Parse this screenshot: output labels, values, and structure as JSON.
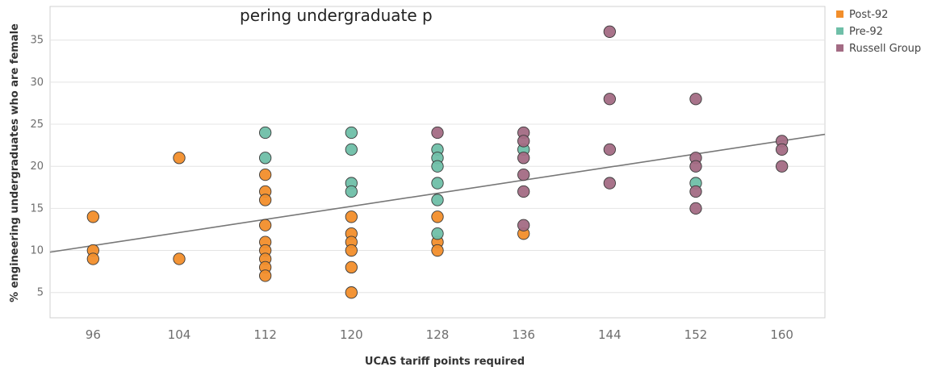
{
  "colors": {
    "Post-92": "#f28e2b",
    "Pre-92": "#6fbfa8",
    "Russell Group": "#a36b84",
    "trend": "#777777",
    "grid": "#e4e4e4"
  },
  "title_fragment": "pering undergraduate p",
  "chart_data": {
    "type": "scatter",
    "xlabel": "UCAS tariff points required",
    "ylabel": "% engineering undergraduates who are female",
    "x_ticks": [
      96,
      104,
      112,
      120,
      128,
      136,
      144,
      152,
      160
    ],
    "y_ticks": [
      5,
      10,
      15,
      20,
      25,
      30,
      35
    ],
    "xlim": [
      92,
      164
    ],
    "ylim": [
      2,
      39
    ],
    "grid": "horizontal",
    "legend_position": "top-right",
    "trendline": {
      "x": [
        92,
        164
      ],
      "y": [
        9.8,
        23.8
      ]
    },
    "series": [
      {
        "name": "Post-92",
        "points": [
          [
            96,
            14
          ],
          [
            96,
            10
          ],
          [
            96,
            9
          ],
          [
            104,
            21
          ],
          [
            104,
            9
          ],
          [
            112,
            19
          ],
          [
            112,
            17
          ],
          [
            112,
            16
          ],
          [
            112,
            13
          ],
          [
            112,
            11
          ],
          [
            112,
            10
          ],
          [
            112,
            9
          ],
          [
            112,
            8
          ],
          [
            112,
            7
          ],
          [
            120,
            14
          ],
          [
            120,
            12
          ],
          [
            120,
            11
          ],
          [
            120,
            10
          ],
          [
            120,
            8
          ],
          [
            120,
            5
          ],
          [
            128,
            14
          ],
          [
            128,
            11
          ],
          [
            128,
            10
          ],
          [
            136,
            12
          ]
        ]
      },
      {
        "name": "Pre-92",
        "points": [
          [
            112,
            24
          ],
          [
            112,
            21
          ],
          [
            120,
            24
          ],
          [
            120,
            22
          ],
          [
            120,
            18
          ],
          [
            120,
            17
          ],
          [
            128,
            22
          ],
          [
            128,
            21
          ],
          [
            128,
            20
          ],
          [
            128,
            18
          ],
          [
            128,
            16
          ],
          [
            128,
            12
          ],
          [
            136,
            22
          ],
          [
            152,
            18
          ]
        ]
      },
      {
        "name": "Russell Group",
        "points": [
          [
            128,
            24
          ],
          [
            136,
            24
          ],
          [
            136,
            23
          ],
          [
            136,
            21
          ],
          [
            136,
            19
          ],
          [
            136,
            17
          ],
          [
            136,
            13
          ],
          [
            144,
            36
          ],
          [
            144,
            28
          ],
          [
            144,
            22
          ],
          [
            144,
            18
          ],
          [
            152,
            28
          ],
          [
            152,
            21
          ],
          [
            152,
            20
          ],
          [
            152,
            17
          ],
          [
            152,
            15
          ],
          [
            160,
            23
          ],
          [
            160,
            22
          ],
          [
            160,
            20
          ]
        ]
      }
    ]
  }
}
